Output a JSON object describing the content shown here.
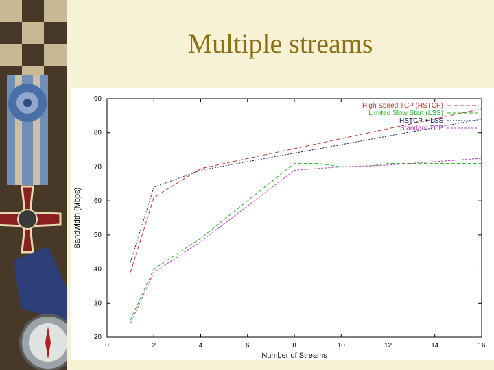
{
  "slide": {
    "title": "Multiple streams"
  },
  "chart_data": {
    "type": "line",
    "title": "",
    "xlabel": "Number of Streams",
    "ylabel": "Bandwidth (Mbps)",
    "xlim": [
      0,
      16
    ],
    "ylim": [
      20,
      90
    ],
    "xticks": [
      0,
      2,
      4,
      6,
      8,
      10,
      12,
      14,
      16
    ],
    "yticks": [
      20,
      30,
      40,
      50,
      60,
      70,
      80,
      90
    ],
    "grid": false,
    "legend_position": "top-right",
    "series": [
      {
        "name": "High Speed TCP (HSTCP)",
        "color": "#c0392b",
        "dash": "6,3",
        "x": [
          1,
          2,
          4,
          16
        ],
        "y": [
          39,
          61,
          69.5,
          87
        ]
      },
      {
        "name": "Limited Slow Start (LSS)",
        "color": "#2db82d",
        "dash": "5,3",
        "x": [
          1,
          2,
          4,
          8,
          9,
          10,
          11,
          12,
          13,
          14,
          15,
          16
        ],
        "y": [
          25,
          40,
          49,
          71,
          71,
          70,
          70,
          71,
          71,
          71,
          71,
          71
        ]
      },
      {
        "name": "HSTCP + LSS",
        "color": "#1a1a5c",
        "dash": "2,2",
        "x": [
          1,
          2,
          4,
          8,
          16
        ],
        "y": [
          42,
          64,
          69,
          74,
          84
        ]
      },
      {
        "name": "Standard TCP",
        "color": "#b838c8",
        "dash": "3,2",
        "x": [
          1,
          2,
          4,
          8,
          10,
          12,
          14,
          16
        ],
        "y": [
          24,
          39,
          48,
          69,
          70,
          70.5,
          71.5,
          72.5
        ]
      }
    ]
  }
}
